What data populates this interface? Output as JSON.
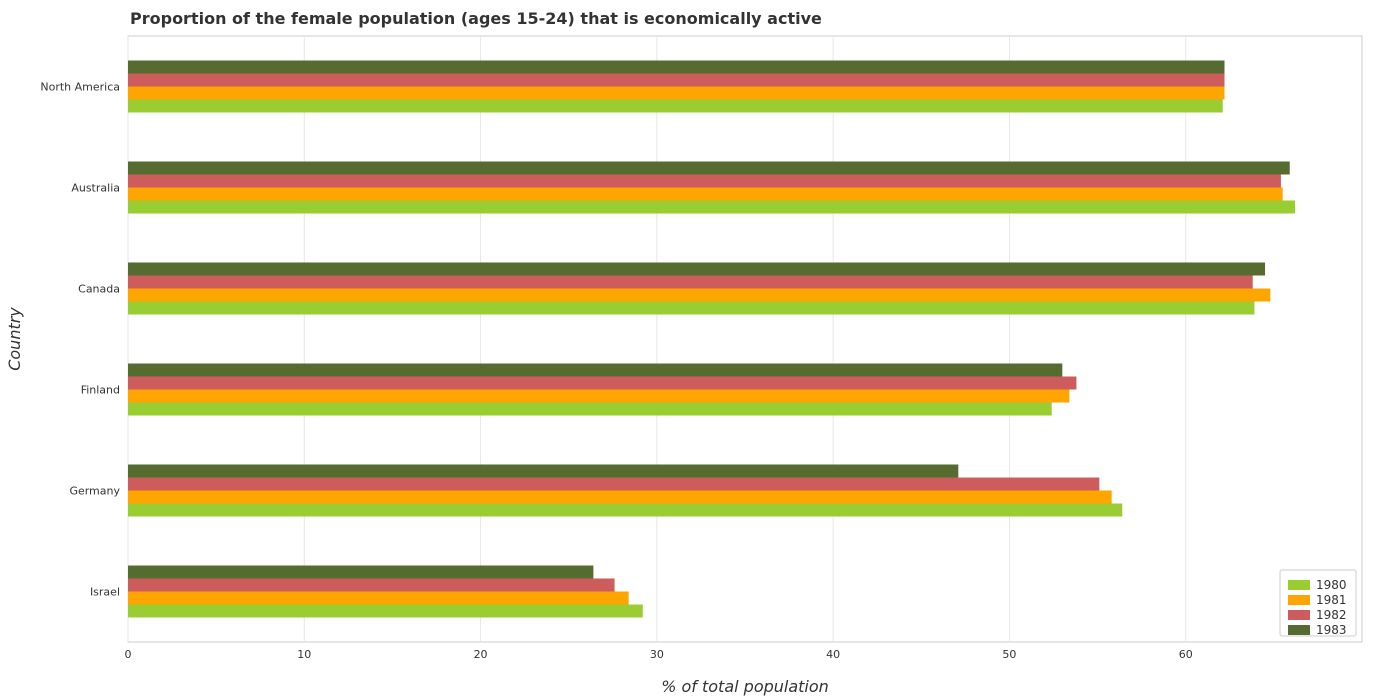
{
  "chart_data": {
    "type": "bar",
    "orientation": "horizontal",
    "title": "Proportion of the female population (ages 15-24) that is economically active",
    "xlabel": "% of total population",
    "ylabel": "Country",
    "xlim": [
      0,
      70
    ],
    "xticks": [
      0,
      10,
      20,
      30,
      40,
      50,
      60
    ],
    "grid": true,
    "legend_position": "bottom-right",
    "categories": [
      "North America",
      "Australia",
      "Canada",
      "Finland",
      "Germany",
      "Israel"
    ],
    "series": [
      {
        "name": "1980",
        "color": "#9acd32",
        "values": [
          62.1,
          66.2,
          63.9,
          52.4,
          56.4,
          29.2
        ]
      },
      {
        "name": "1981",
        "color": "#ffa500",
        "values": [
          62.2,
          65.5,
          64.8,
          53.4,
          55.8,
          28.4
        ]
      },
      {
        "name": "1982",
        "color": "#cd5c5c",
        "values": [
          62.2,
          65.4,
          63.8,
          53.8,
          55.1,
          27.6
        ]
      },
      {
        "name": "1983",
        "color": "#556b2f",
        "values": [
          62.2,
          65.9,
          64.5,
          53.0,
          47.1,
          26.4
        ]
      }
    ]
  }
}
